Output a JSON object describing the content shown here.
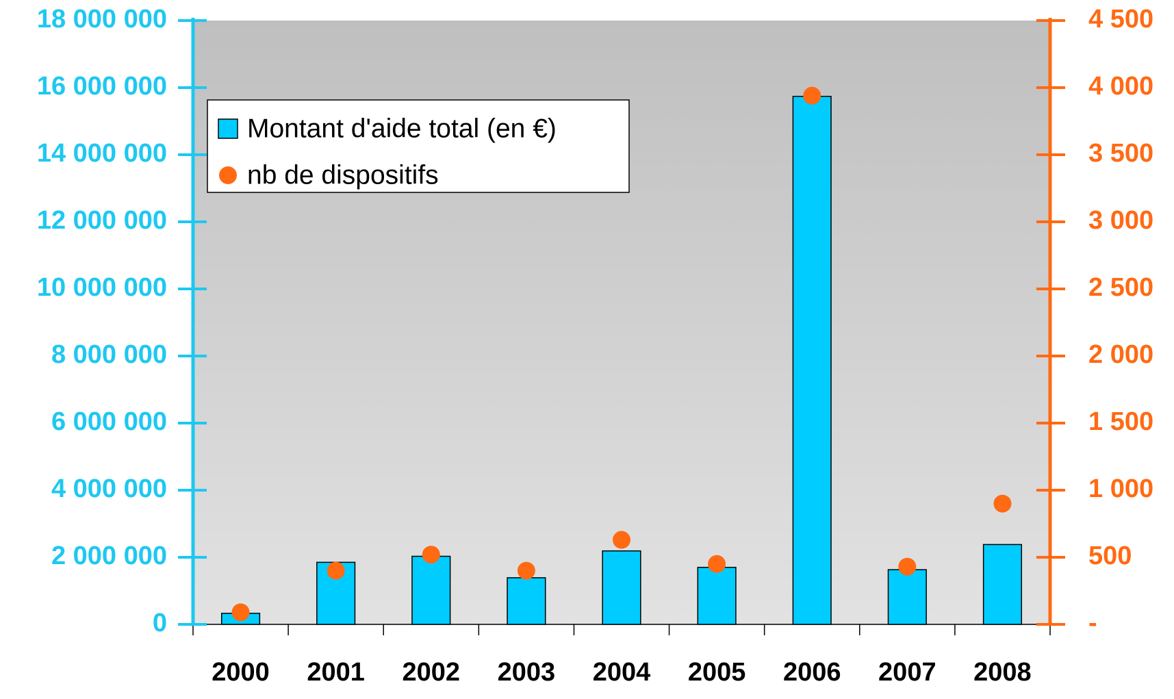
{
  "chart_data": {
    "type": "bar",
    "categories": [
      "2000",
      "2001",
      "2002",
      "2003",
      "2004",
      "2005",
      "2006",
      "2007",
      "2008"
    ],
    "series": [
      {
        "name": "Montant d'aide total (en €)",
        "color": "#00ccff",
        "axis": "y",
        "values": [
          330000,
          1850000,
          2030000,
          1390000,
          2190000,
          1700000,
          15740000,
          1630000,
          2380000
        ]
      },
      {
        "name": "nb de dispositifs",
        "color": "#ff6a13",
        "axis": "y2",
        "type": "scatter",
        "values": [
          90,
          400,
          520,
          400,
          630,
          450,
          3940,
          430,
          900
        ]
      }
    ],
    "ylim": [
      0,
      18000000
    ],
    "yticks": [
      0,
      {
        "value": 2000000,
        "label": "2 000 000"
      },
      {
        "value": 4000000,
        "label": "4 000 000"
      },
      {
        "value": 6000000,
        "label": "6 000 000"
      },
      {
        "value": 8000000,
        "label": "8 000 000"
      },
      {
        "value": 10000000,
        "label": "10 000 000"
      },
      {
        "value": 12000000,
        "label": "12 000 000"
      },
      {
        "value": 14000000,
        "label": "14 000 000"
      },
      {
        "value": 16000000,
        "label": "16 000 000"
      },
      {
        "value": 18000000,
        "label": "18 000 000"
      }
    ],
    "y2lim": [
      0,
      4500
    ],
    "y2ticks": [
      {
        "value": 0,
        "label": "-"
      },
      500,
      {
        "value": 1000,
        "label": "1 000"
      },
      {
        "value": 1500,
        "label": "1 500"
      },
      {
        "value": 2000,
        "label": "2 000"
      },
      {
        "value": 2500,
        "label": "2 500"
      },
      {
        "value": 3000,
        "label": "3 000"
      },
      {
        "value": 3500,
        "label": "3 500"
      },
      {
        "value": 4000,
        "label": "4 000"
      },
      {
        "value": 4500,
        "label": "4 500"
      }
    ],
    "y_color": "#1ec8f0",
    "y2_color": "#ff6a13",
    "legend": "upper left"
  }
}
